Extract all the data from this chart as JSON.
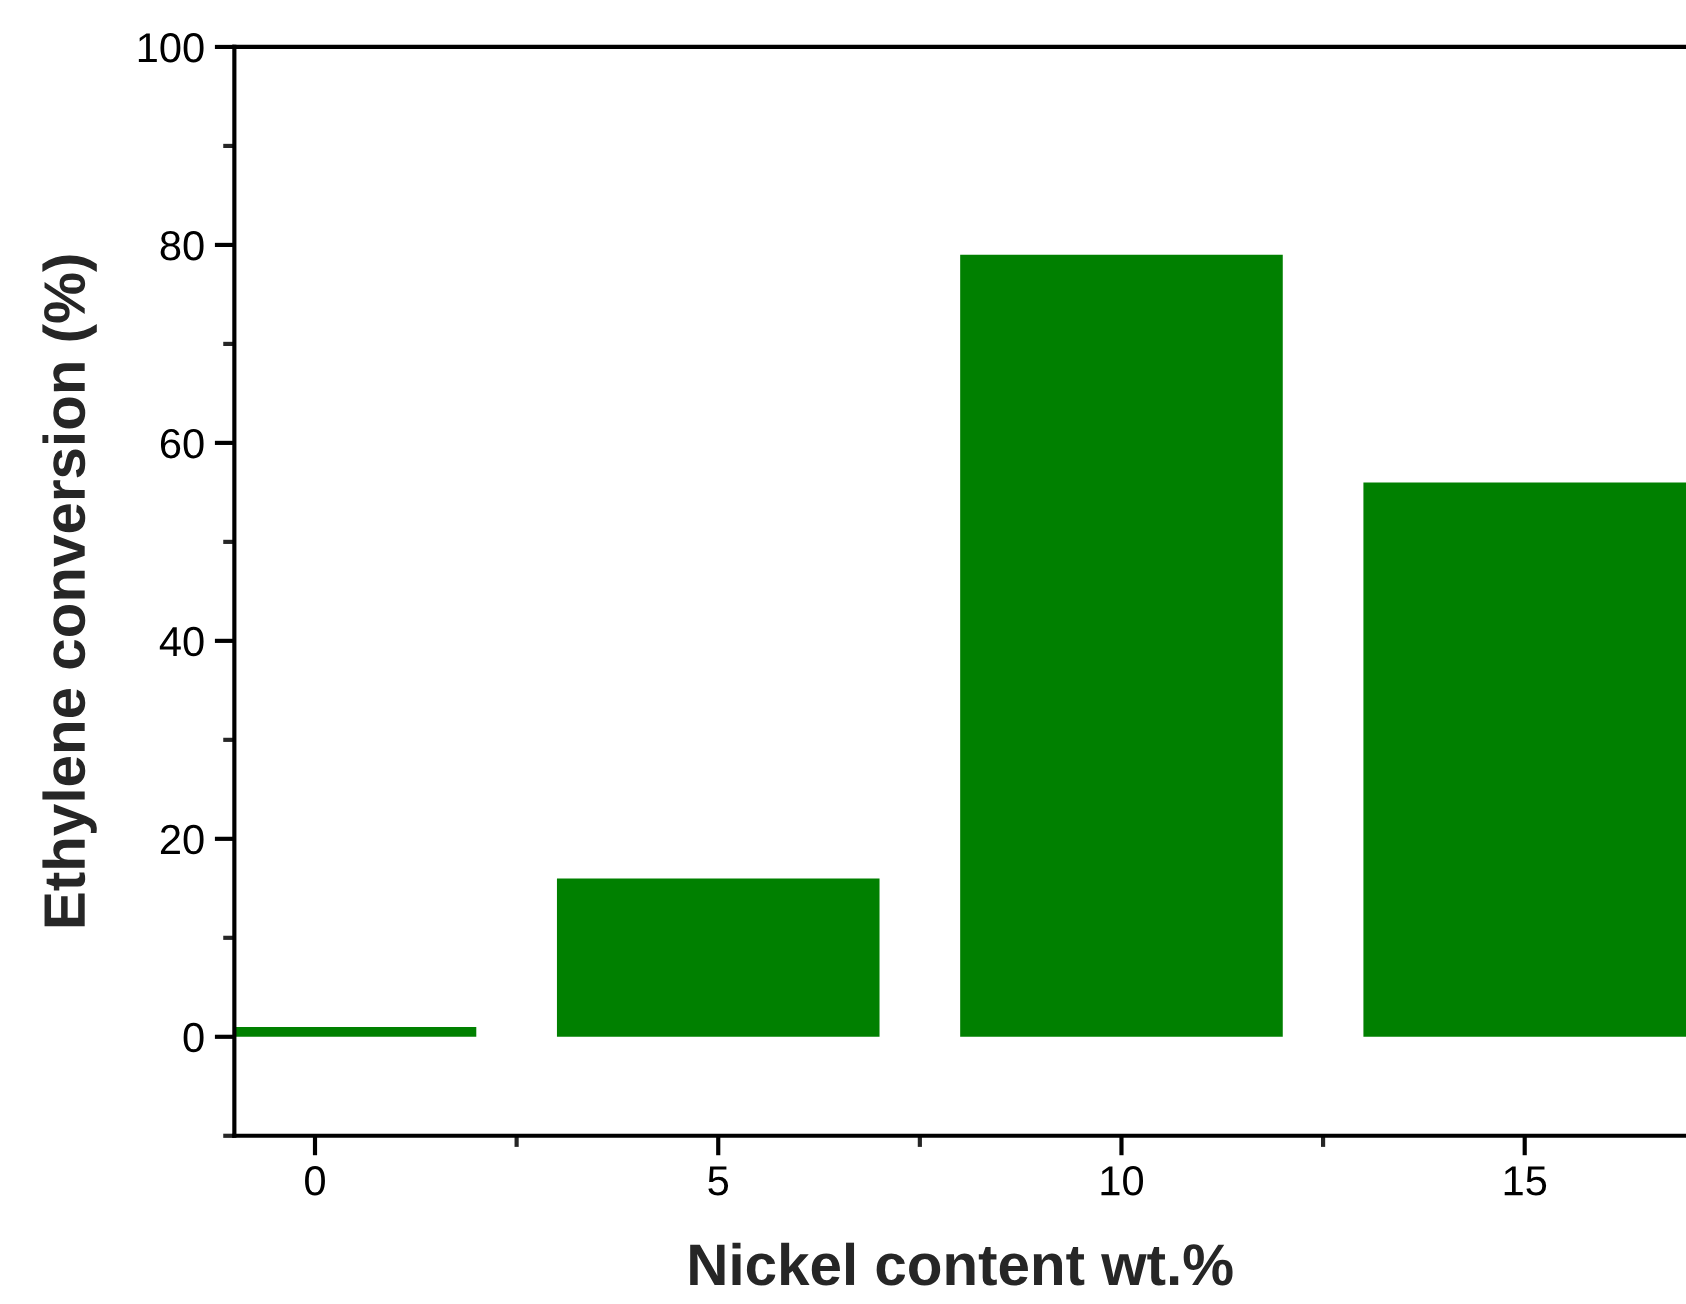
{
  "chart_data": {
    "type": "bar",
    "xlabel": "Nickel content wt.%",
    "ylabel": "Ethylene conversion (%)",
    "x": [
      0,
      5,
      10,
      15
    ],
    "series": [
      {
        "color": "#008000",
        "values": [
          1,
          16,
          79,
          56
        ]
      }
    ],
    "xlim": [
      -1,
      17
    ],
    "xticks": [
      0,
      5,
      10,
      15
    ],
    "ylim": [
      -10,
      100
    ],
    "yticks": [
      0,
      20,
      40,
      60,
      80,
      100
    ],
    "grid": false,
    "legend": false
  }
}
